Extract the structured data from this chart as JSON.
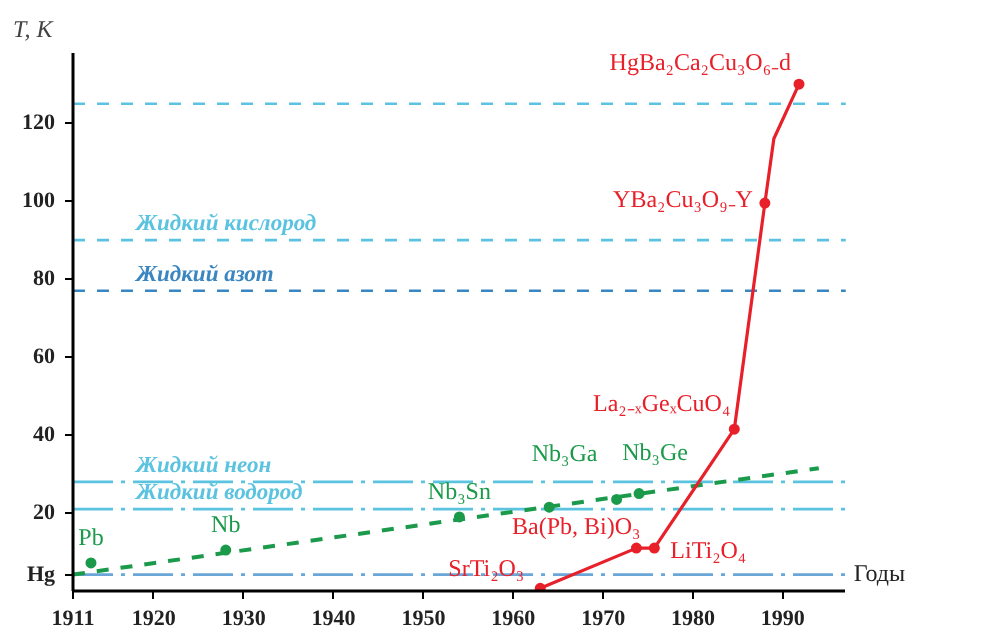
{
  "chart_data": {
    "type": "line",
    "xlabel": "Годы",
    "ylabel": "T, К",
    "xlim": [
      1911,
      1997
    ],
    "ylim": [
      0,
      138
    ],
    "xticks": [
      1911,
      1920,
      1930,
      1940,
      1950,
      1960,
      1970,
      1980,
      1990
    ],
    "yticks": [
      {
        "value": 4.2,
        "label": "Hg"
      },
      20,
      40,
      60,
      80,
      100,
      120
    ],
    "grid": false,
    "series": [
      {
        "type": "scatter",
        "color": "#1a9a4a",
        "marker": "circle",
        "x": [
          1913,
          1928,
          1954,
          1964,
          1971.5,
          1974
        ],
        "values": [
          7.2,
          10.5,
          19,
          21.5,
          23.5,
          25
        ]
      },
      {
        "type": "line",
        "color": "#1a9a4a",
        "line_style": "dashed",
        "marker": "none",
        "x": [
          1911,
          1994
        ],
        "values": [
          4.2,
          31.5
        ]
      },
      {
        "type": "line",
        "color": "#e8202a",
        "line_style": "solid",
        "marker": "none",
        "x": [
          1963,
          1973.7,
          1975.7,
          1984.6,
          1988,
          1989,
          1991.8
        ],
        "values": [
          0.7,
          11,
          11,
          41.5,
          99.5,
          116,
          130
        ]
      },
      {
        "type": "scatter",
        "color": "#e8202a",
        "marker": "circle",
        "x": [
          1963,
          1973.7,
          1975.7,
          1984.6,
          1988,
          1991.8
        ],
        "values": [
          0.7,
          11,
          11,
          41.5,
          99.5,
          130
        ]
      }
    ],
    "ref_lines": [
      {
        "axis": "y",
        "value": 125,
        "label": null,
        "color": "#5bc3e0",
        "line_style": "dashed"
      },
      {
        "axis": "y",
        "value": 90,
        "label": "Жидкий кислород",
        "color": "#5bc3e0",
        "line_style": "dashed"
      },
      {
        "axis": "y",
        "value": 77,
        "label": "Жидкий азот",
        "color": "#3a86c0",
        "line_style": "dashed"
      },
      {
        "axis": "y",
        "value": 28,
        "label": "Жидкий неон",
        "color": "#5bc3e0",
        "line_style": "dashdot"
      },
      {
        "axis": "y",
        "value": 21,
        "label": "Жидкий водород",
        "color": "#5bc3e0",
        "line_style": "dashdot"
      },
      {
        "axis": "y",
        "value": 4.2,
        "label": null,
        "color": "#6aa6d8",
        "line_style": "dashdot"
      }
    ],
    "annotations": [
      {
        "text": "Pb",
        "x": 1913,
        "y": 7.2
      },
      {
        "text": "Nb",
        "x": 1928,
        "y": 10.5
      },
      {
        "text": "Nb₃Sn",
        "x": 1954,
        "y": 19
      },
      {
        "text": "Nb₃Ga",
        "x": 1971.5,
        "y": 23.5
      },
      {
        "text": "Nb₃Ge",
        "x": 1974,
        "y": 25
      },
      {
        "text": "SrTi₂O₃",
        "x": 1963,
        "y": 0.7
      },
      {
        "text": "Ba(Pb, Bi)O₃",
        "x": 1973.7,
        "y": 11
      },
      {
        "text": "LiTi₂O₄",
        "x": 1975.7,
        "y": 11
      },
      {
        "text": "La₂₋ₓGeₓCuO₄",
        "x": 1984.6,
        "y": 41.5
      },
      {
        "text": "YBa₂Cu₃O₉₋Y",
        "x": 1988,
        "y": 99.5
      },
      {
        "text": "HgBa₂Ca₂Cu₃O₆₋d",
        "x": 1991.8,
        "y": 130
      }
    ]
  }
}
